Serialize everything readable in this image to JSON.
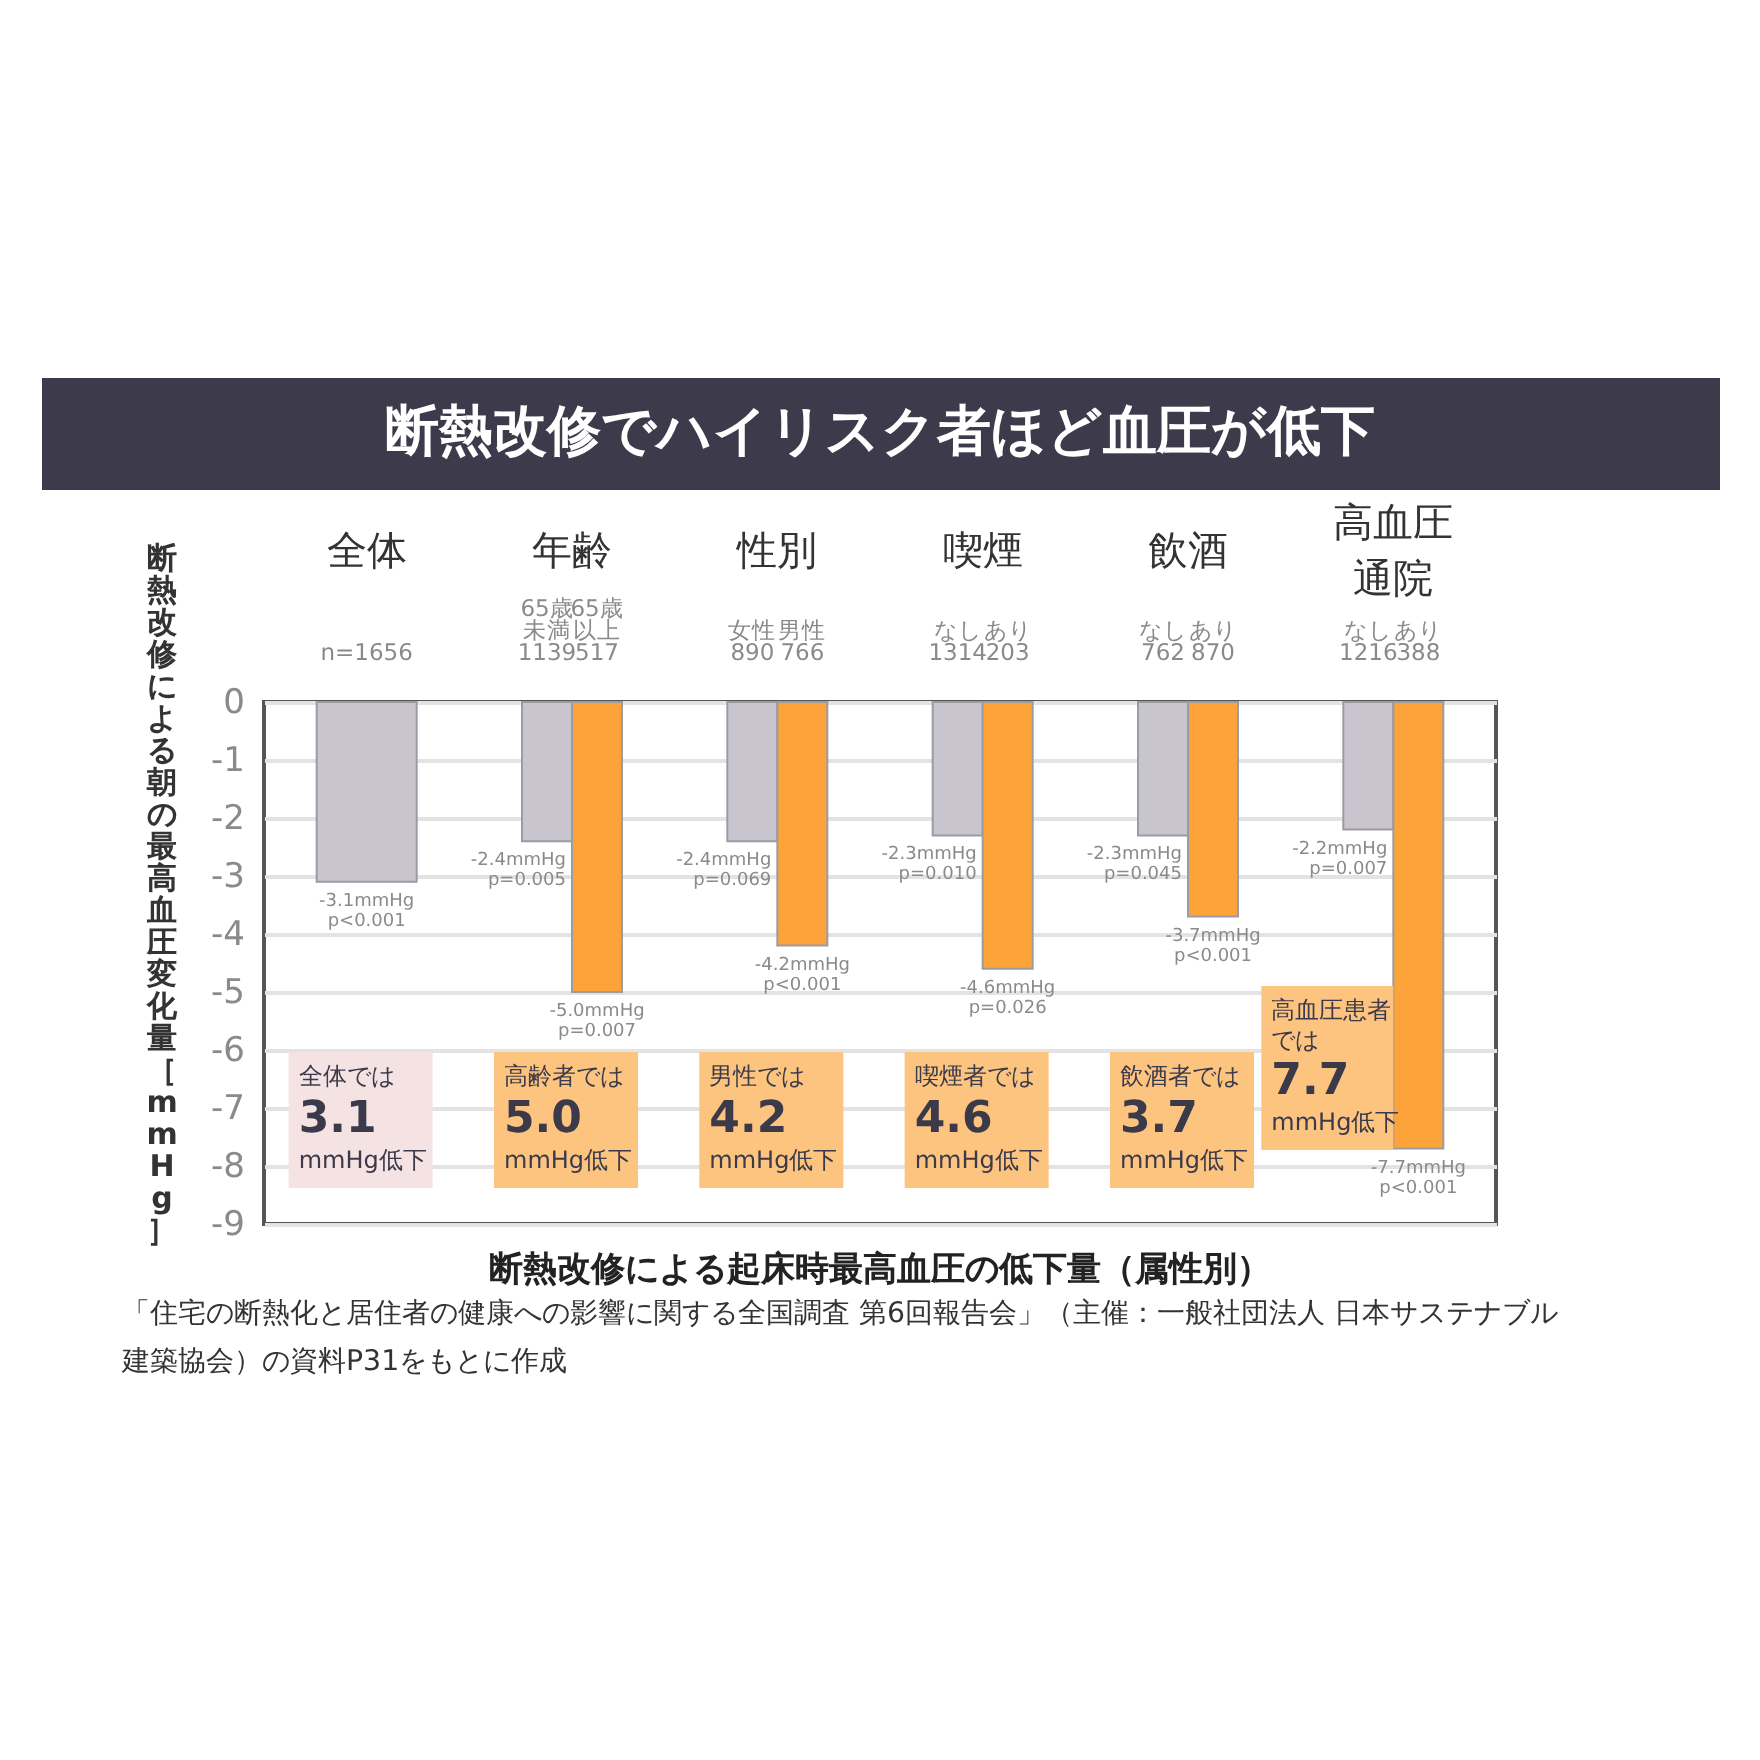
{
  "chart_data": {
    "type": "bar",
    "title": "断熱改修でハイリスク者ほど血圧が低下",
    "xlabel": "断熱改修による起床時最高血圧の低下量（属性別）",
    "ylabel": "断熱改修による朝の最高血圧変化量［mmHg］",
    "categories": [
      "n=1656",
      "65歳未満\n1139",
      "65歳以上\n517",
      "女性\n890",
      "男性\n766",
      "なし\n1314",
      "あり\n203",
      "なし\n762",
      "あり\n870",
      "なし\n1216",
      "あり\n388"
    ],
    "values": [
      -3.1,
      -2.4,
      -5.0,
      -2.4,
      -4.2,
      -2.3,
      -4.6,
      -2.3,
      -3.7,
      -2.2,
      -7.7
    ],
    "colors": [
      "#c8c5cf",
      "#c8c5cf",
      "#fca43a",
      "#c8c5cf",
      "#fca43a",
      "#c8c5cf",
      "#fca43a",
      "#c8c5cf",
      "#fca43a",
      "#c8c5cf",
      "#fca43a"
    ],
    "value_labels": [
      "-3.1mmHg\np<0.001",
      "-2.4mmHg\np=0.005",
      "-5.0mmHg\np=0.007",
      "-2.4mmHg\np=0.069",
      "-4.2mmHg\np<0.001",
      "-2.3mmHg\np=0.010",
      "-4.6mmHg\np=0.026",
      "-2.3mmHg\np=0.045",
      "-3.7mmHg\np<0.001",
      "-2.2mmHg\np=0.007",
      "-7.7mmHg\np<0.001"
    ],
    "ylim": [
      -9,
      0
    ],
    "yticks": [
      0,
      -1,
      -2,
      -3,
      -4,
      -5,
      -6,
      -7,
      -8,
      -9
    ],
    "grid": "y",
    "annotations": [
      "全体",
      "年齢",
      "性別",
      "喫煙",
      "飲酒",
      "高血圧通院",
      "全体では\n3.1\nmmHg低下",
      "高齢者では\n5.0\nmmHg低下",
      "男性では\n4.2\nmmHg低下",
      "喫煙者では\n4.6\nmmHg低下",
      "飲酒者では\n3.7\nmmHg低下",
      "高血圧患者では\n7.7\nmmHg低下",
      "「住宅の断熱化と居住者の健康への影響に関する全国調査 第6回報告会」（主催：一般社団法人 日本サステナブル建築協会）の資料P31をもとに作成"
    ]
  }
}
